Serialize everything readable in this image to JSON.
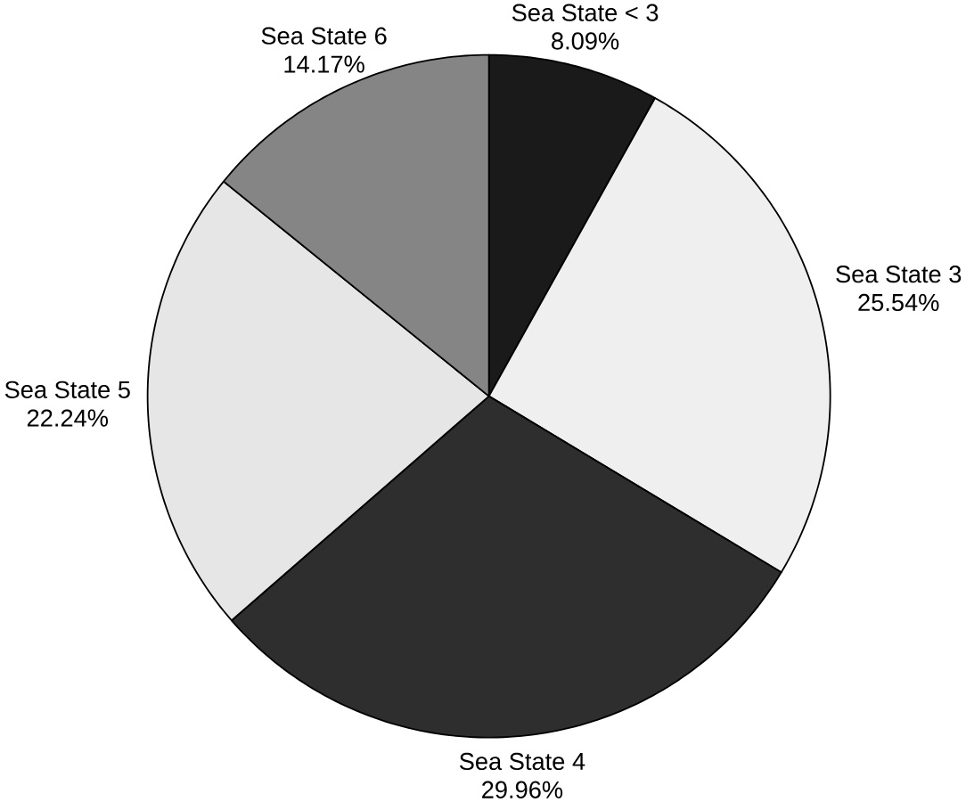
{
  "chart_data": {
    "type": "pie",
    "categories": [
      "Sea State < 3",
      "Sea State 3",
      "Sea State 4",
      "Sea State 5",
      "Sea State 6"
    ],
    "values": [
      8.09,
      25.54,
      29.96,
      22.24,
      14.17
    ],
    "value_labels": [
      "8.09%",
      "25.54%",
      "29.96%",
      "22.24%",
      "14.17%"
    ],
    "colors": [
      "#1a1a1a",
      "#efefef",
      "#2e2e2e",
      "#e6e6e6",
      "#858585"
    ]
  }
}
